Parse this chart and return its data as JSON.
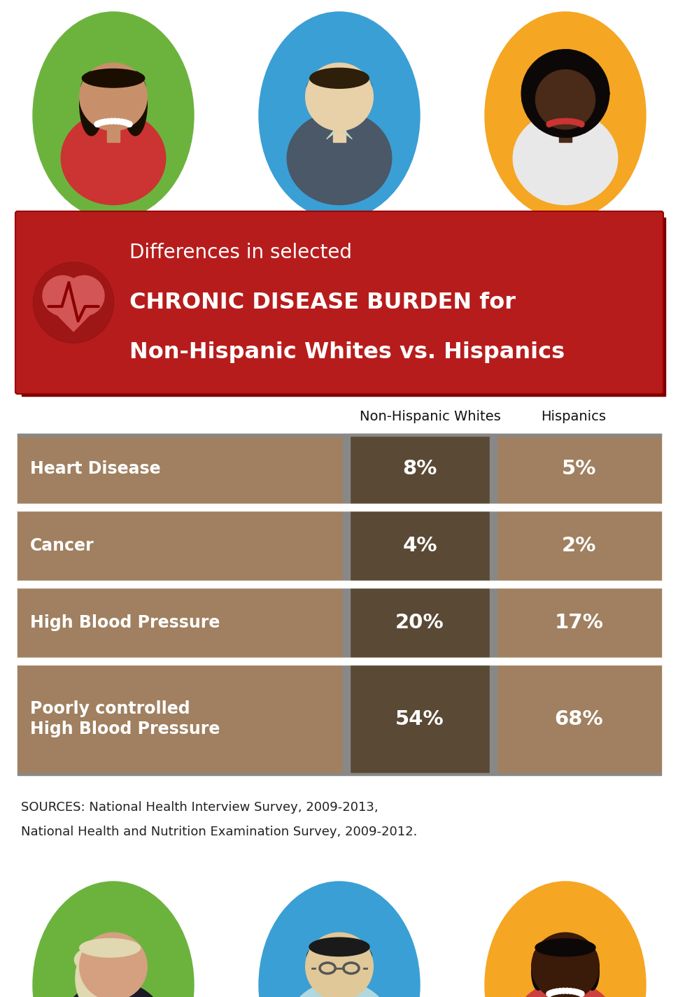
{
  "bg_color": "#ffffff",
  "title_bg_color": "#b71c1c",
  "title_bg_shadow": "#8b0000",
  "title_line1": "Differences in selected",
  "title_line2": "CHRONIC DISEASE BURDEN for",
  "title_line3": "Non-Hispanic Whites vs. Hispanics",
  "col_header1": "Non-Hispanic Whites",
  "col_header2": "Hispanics",
  "rows": [
    {
      "label": "Heart Disease",
      "val1": "8%",
      "val2": "5%",
      "tall": false
    },
    {
      "label": "Cancer",
      "val1": "4%",
      "val2": "2%",
      "tall": false
    },
    {
      "label": "High Blood Pressure",
      "val1": "20%",
      "val2": "17%",
      "tall": false
    },
    {
      "label": "Poorly controlled\nHigh Blood Pressure",
      "val1": "54%",
      "val2": "68%",
      "tall": true
    }
  ],
  "row_color_light": "#a08060",
  "row_color_dark": "#5a4a35",
  "separator_color": "#888888",
  "sources_line1": "SOURCES: National Health Interview Survey, 2009-2013,",
  "sources_line2": "National Health and Nutrition Examination Survey, 2009-2012.",
  "avatar_green": "#6cb33e",
  "avatar_blue": "#3a9fd5",
  "avatar_yellow": "#f5a623",
  "top_avatars": [
    {
      "bg": "#6cb33e",
      "skin": "#c8906a",
      "hair": "#1a0e00",
      "shirt": "#cc3333",
      "hair_style": "long_straight",
      "necklace": "#ffffff"
    },
    {
      "bg": "#3a9fd5",
      "skin": "#e8d0a8",
      "hair": "#2d1f0a",
      "shirt": "#4a5868",
      "hair_style": "short_male",
      "necklace": null,
      "collar": "#c8d8c0"
    },
    {
      "bg": "#f5a623",
      "skin": "#4a2a18",
      "hair": "#0d0808",
      "shirt": "#e8e8e8",
      "hair_style": "afro",
      "necklace": "#cc3333"
    }
  ],
  "bottom_avatars": [
    {
      "bg": "#6cb33e",
      "skin": "#d4a080",
      "hair": "#e0d8b0",
      "shirt": "#1a1a2a",
      "hair_style": "blonde_wavy",
      "necklace": null
    },
    {
      "bg": "#3a9fd5",
      "skin": "#e0c898",
      "hair": "#1a1a1a",
      "shirt": "#b0d8e0",
      "hair_style": "short_side",
      "necklace": null,
      "glasses": true
    },
    {
      "bg": "#f5a623",
      "skin": "#3a1a08",
      "hair": "#0d0808",
      "shirt": "#cc4040",
      "hair_style": "dark_bun",
      "necklace": "#ffffff"
    }
  ]
}
